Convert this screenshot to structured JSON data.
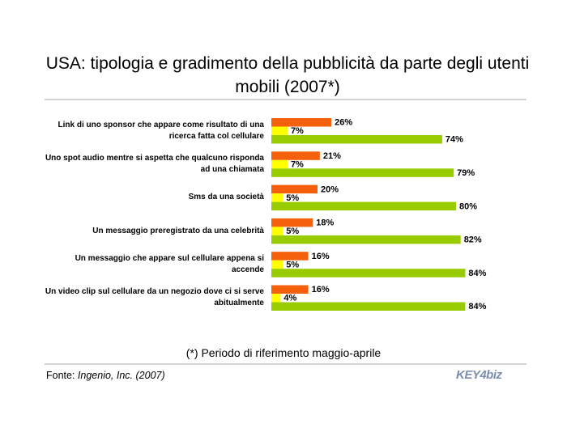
{
  "chart_data": {
    "type": "bar",
    "orientation": "horizontal",
    "title": "USA: tipologia e gradimento della pubblicità da parte degli utenti mobili (2007*)",
    "categories": [
      "Link di uno sponsor che appare come risultato di una ricerca fatta col cellulare",
      "Uno spot audio mentre si aspetta che qualcuno risponda ad una chiamata",
      "Sms da una società",
      "Un messaggio preregistrato da una celebrità",
      "Un messaggio che appare sul cellulare appena si accende",
      "Un video clip sul cellulare da un negozio dove ci si serve abitualmente"
    ],
    "series": [
      {
        "color": "#f4600c",
        "values": [
          26,
          21,
          20,
          18,
          16,
          16
        ],
        "value_labels": [
          "26%",
          "21%",
          "20%",
          "18%",
          "16%",
          "16%"
        ]
      },
      {
        "color": "#ffff00",
        "values": [
          7,
          7,
          5,
          5,
          5,
          4
        ],
        "value_labels": [
          "7%",
          "7%",
          "5%",
          "5%",
          "5%",
          "4%"
        ]
      },
      {
        "color": "#99cc00",
        "values": [
          74,
          79,
          80,
          82,
          84,
          84
        ],
        "value_labels": [
          "74%",
          "79%",
          "80%",
          "82%",
          "84%",
          "84%"
        ]
      }
    ],
    "annotation": "(*) Periodo di riferimento maggio-aprile",
    "source_label": "Fonte:",
    "source": "Ingenio, Inc. (2007)",
    "logo": "KEY4biz"
  }
}
